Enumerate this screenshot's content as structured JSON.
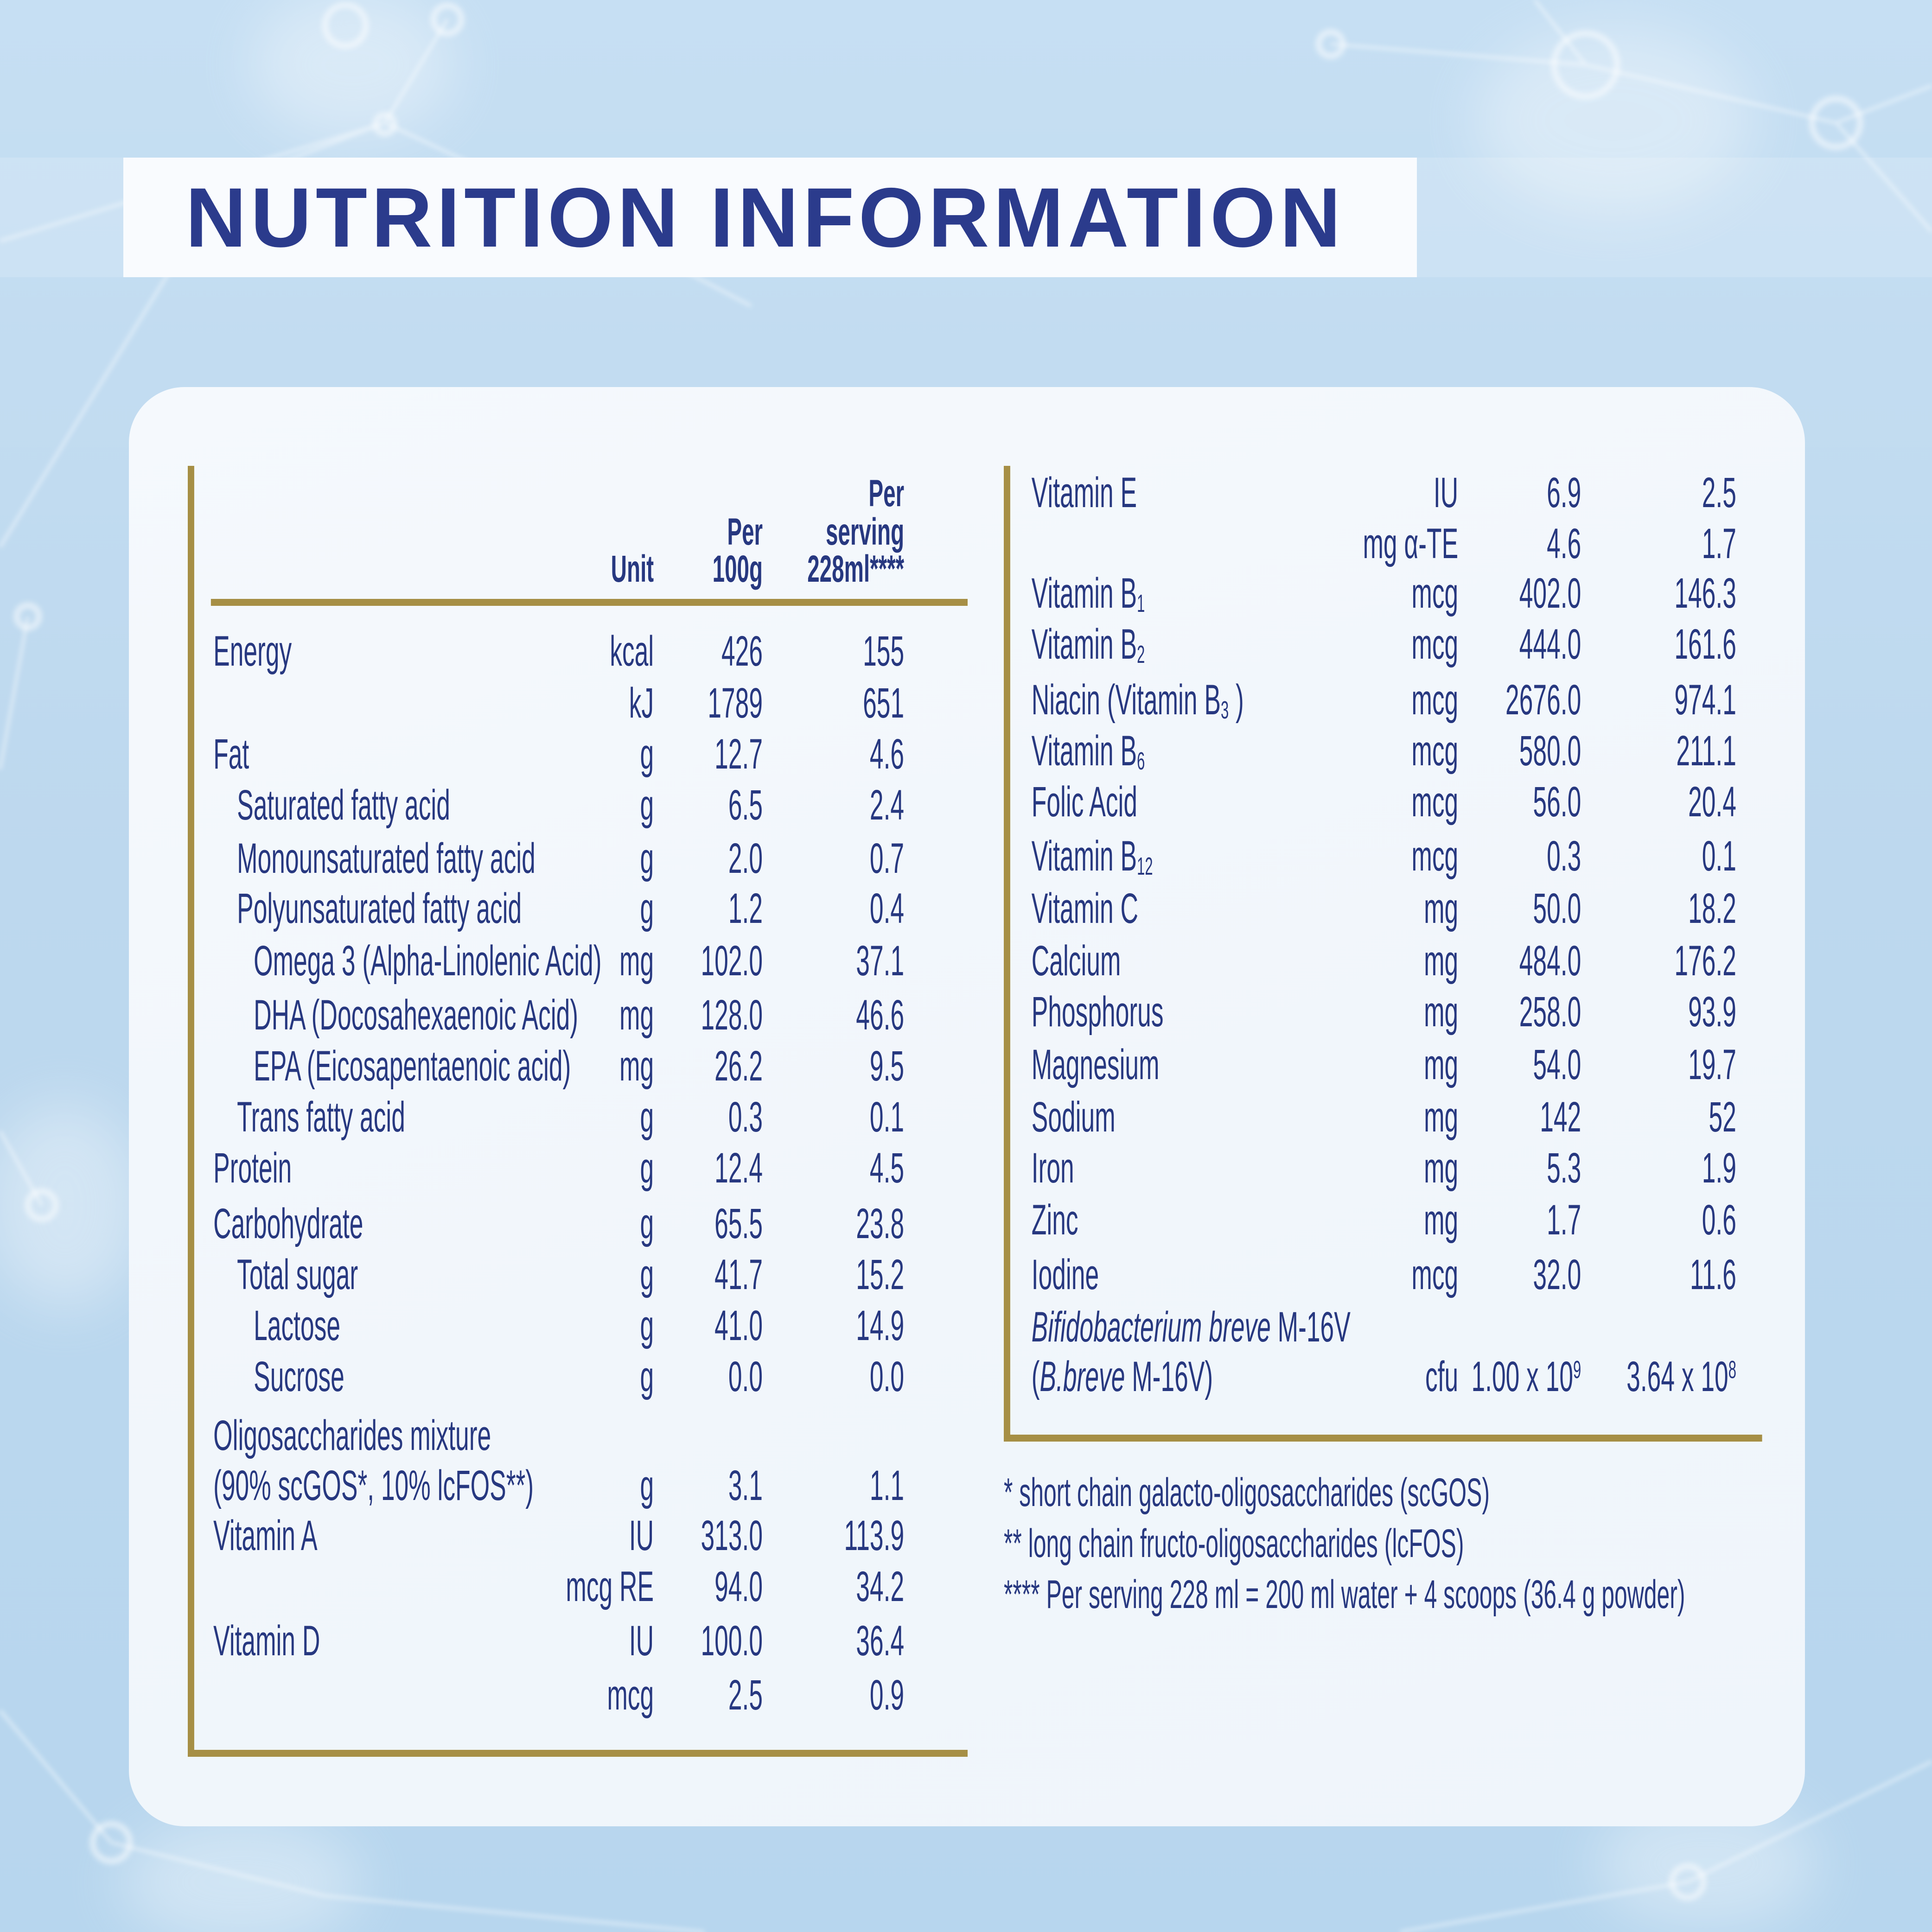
{
  "title": "NUTRITION INFORMATION",
  "colors": {
    "background": "#BDD8EE",
    "card": "#F3F7FC",
    "title_band": "#F9FBFE",
    "text_navy": "#273880",
    "title_navy": "#2B3B8C",
    "accent_gold": "#A68F45"
  },
  "table_left": {
    "header": {
      "unit": "Unit",
      "per_100g_lines": [
        "Per",
        "100g"
      ],
      "per_serving_lines": [
        "Per",
        "serving",
        "228ml****"
      ]
    },
    "rows": [
      {
        "label": [
          {
            "t": "Energy"
          }
        ],
        "unit": "kcal",
        "per_100g": "426",
        "per_serving": "155",
        "indent": 0
      },
      {
        "label": [],
        "unit": "kJ",
        "per_100g": "1789",
        "per_serving": "651",
        "indent": 0
      },
      {
        "label": [
          {
            "t": "Fat"
          }
        ],
        "unit": "g",
        "per_100g": "12.7",
        "per_serving": "4.6",
        "indent": 0
      },
      {
        "label": [
          {
            "t": "Saturated fatty acid"
          }
        ],
        "unit": "g",
        "per_100g": "6.5",
        "per_serving": "2.4",
        "indent": 1
      },
      {
        "label": [
          {
            "t": "Monounsaturated fatty acid"
          }
        ],
        "unit": "g",
        "per_100g": "2.0",
        "per_serving": "0.7",
        "indent": 1
      },
      {
        "label": [
          {
            "t": "Polyunsaturated fatty acid"
          }
        ],
        "unit": "g",
        "per_100g": "1.2",
        "per_serving": "0.4",
        "indent": 1
      },
      {
        "label": [
          {
            "t": "Omega 3 (Alpha-Linolenic Acid)"
          }
        ],
        "unit": "mg",
        "per_100g": "102.0",
        "per_serving": "37.1",
        "indent": 2
      },
      {
        "label": [
          {
            "t": "DHA (Docosahexaenoic Acid)"
          }
        ],
        "unit": "mg",
        "per_100g": "128.0",
        "per_serving": "46.6",
        "indent": 2
      },
      {
        "label": [
          {
            "t": "EPA (Eicosapentaenoic acid)"
          }
        ],
        "unit": "mg",
        "per_100g": "26.2",
        "per_serving": "9.5",
        "indent": 2
      },
      {
        "label": [
          {
            "t": "Trans fatty acid"
          }
        ],
        "unit": "g",
        "per_100g": "0.3",
        "per_serving": "0.1",
        "indent": 1
      },
      {
        "label": [
          {
            "t": "Protein"
          }
        ],
        "unit": "g",
        "per_100g": "12.4",
        "per_serving": "4.5",
        "indent": 0
      },
      {
        "label": [
          {
            "t": "Carbohydrate"
          }
        ],
        "unit": "g",
        "per_100g": "65.5",
        "per_serving": "23.8",
        "indent": 0
      },
      {
        "label": [
          {
            "t": "Total sugar"
          }
        ],
        "unit": "g",
        "per_100g": "41.7",
        "per_serving": "15.2",
        "indent": 1
      },
      {
        "label": [
          {
            "t": "Lactose"
          }
        ],
        "unit": "g",
        "per_100g": "41.0",
        "per_serving": "14.9",
        "indent": 2
      },
      {
        "label": [
          {
            "t": "Sucrose"
          }
        ],
        "unit": "g",
        "per_100g": "0.0",
        "per_serving": "0.0",
        "indent": 2
      },
      {
        "label": [
          {
            "t": "Oligosaccharides mixture"
          }
        ],
        "unit": "",
        "per_100g": "",
        "per_serving": "",
        "indent": 0
      },
      {
        "label": [
          {
            "t": "(90% scGOS*, 10% lcFOS**)"
          }
        ],
        "unit": "g",
        "per_100g": "3.1",
        "per_serving": "1.1",
        "indent": 0
      },
      {
        "label": [
          {
            "t": "Vitamin A"
          }
        ],
        "unit": "IU",
        "per_100g": "313.0",
        "per_serving": "113.9",
        "indent": 0
      },
      {
        "label": [],
        "unit": "mcg RE",
        "per_100g": "94.0",
        "per_serving": "34.2",
        "indent": 0
      },
      {
        "label": [
          {
            "t": "Vitamin D"
          }
        ],
        "unit": "IU",
        "per_100g": "100.0",
        "per_serving": "36.4",
        "indent": 0
      },
      {
        "label": [],
        "unit": "mcg",
        "per_100g": "2.5",
        "per_serving": "0.9",
        "indent": 0
      }
    ]
  },
  "table_right": {
    "rows": [
      {
        "label": [
          {
            "t": "Vitamin E"
          }
        ],
        "unit": "IU",
        "per_100g": "6.9",
        "per_serving": "2.5",
        "indent": 0
      },
      {
        "label": [],
        "unit": "mg α-TE",
        "per_100g": "4.6",
        "per_serving": "1.7",
        "indent": 0
      },
      {
        "label": [
          {
            "t": "Vitamin B"
          },
          {
            "t": "1",
            "sub": true
          }
        ],
        "unit": "mcg",
        "per_100g": "402.0",
        "per_serving": "146.3",
        "indent": 0
      },
      {
        "label": [
          {
            "t": "Vitamin B"
          },
          {
            "t": "2",
            "sub": true
          }
        ],
        "unit": "mcg",
        "per_100g": "444.0",
        "per_serving": "161.6",
        "indent": 0
      },
      {
        "label": [
          {
            "t": "Niacin (Vitamin B"
          },
          {
            "t": "3",
            "sub": true
          },
          {
            "t": " )"
          }
        ],
        "unit": "mcg",
        "per_100g": "2676.0",
        "per_serving": "974.1",
        "indent": 0
      },
      {
        "label": [
          {
            "t": "Vitamin B"
          },
          {
            "t": "6",
            "sub": true
          }
        ],
        "unit": "mcg",
        "per_100g": "580.0",
        "per_serving": "211.1",
        "indent": 0
      },
      {
        "label": [
          {
            "t": "Folic Acid"
          }
        ],
        "unit": "mcg",
        "per_100g": "56.0",
        "per_serving": "20.4",
        "indent": 0
      },
      {
        "label": [
          {
            "t": "Vitamin B"
          },
          {
            "t": "12",
            "sub": true
          }
        ],
        "unit": "mcg",
        "per_100g": "0.3",
        "per_serving": "0.1",
        "indent": 0
      },
      {
        "label": [
          {
            "t": "Vitamin C"
          }
        ],
        "unit": "mg",
        "per_100g": "50.0",
        "per_serving": "18.2",
        "indent": 0
      },
      {
        "label": [
          {
            "t": "Calcium"
          }
        ],
        "unit": "mg",
        "per_100g": "484.0",
        "per_serving": "176.2",
        "indent": 0
      },
      {
        "label": [
          {
            "t": "Phosphorus"
          }
        ],
        "unit": "mg",
        "per_100g": "258.0",
        "per_serving": "93.9",
        "indent": 0
      },
      {
        "label": [
          {
            "t": "Magnesium"
          }
        ],
        "unit": "mg",
        "per_100g": "54.0",
        "per_serving": "19.7",
        "indent": 0
      },
      {
        "label": [
          {
            "t": "Sodium"
          }
        ],
        "unit": "mg",
        "per_100g": "142",
        "per_serving": "52",
        "indent": 0
      },
      {
        "label": [
          {
            "t": "Iron"
          }
        ],
        "unit": "mg",
        "per_100g": "5.3",
        "per_serving": "1.9",
        "indent": 0
      },
      {
        "label": [
          {
            "t": "Zinc"
          }
        ],
        "unit": "mg",
        "per_100g": "1.7",
        "per_serving": "0.6",
        "indent": 0
      },
      {
        "label": [
          {
            "t": "Iodine"
          }
        ],
        "unit": "mcg",
        "per_100g": "32.0",
        "per_serving": "11.6",
        "indent": 0
      },
      {
        "label": [
          {
            "t": "Bifidobacterium breve",
            "i": true
          },
          {
            "t": " M-16V"
          }
        ],
        "unit": "",
        "per_100g": "",
        "per_serving": "",
        "indent": 0
      },
      {
        "label": [
          {
            "t": "("
          },
          {
            "t": "B.breve",
            "i": true
          },
          {
            "t": " M-16V)"
          }
        ],
        "unit": "cfu",
        "per_100g": [
          {
            "t": "1.00 x 10"
          },
          {
            "t": "9",
            "sup": true
          }
        ],
        "per_serving": [
          {
            "t": "3.64 x 10"
          },
          {
            "t": "8",
            "sup": true
          }
        ],
        "indent": 0
      }
    ]
  },
  "footnotes": [
    "* short chain galacto-oligosaccharides (scGOS)",
    "** long chain fructo-oligosaccharides (lcFOS)",
    "**** Per serving 228 ml = 200 ml water + 4 scoops (36.4 g powder)"
  ]
}
